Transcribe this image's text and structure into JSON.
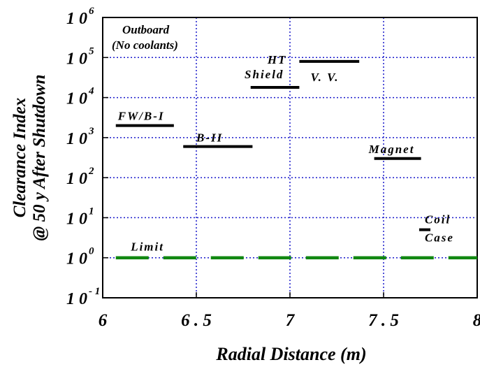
{
  "chart_data": {
    "type": "line",
    "x_scale": "linear",
    "y_scale": "log",
    "xlim": [
      6,
      8
    ],
    "ylim": [
      0.1,
      1000000
    ],
    "grid": true,
    "xlabel": "Radial Distance  (m)",
    "ylabel_lines": [
      "Clearance  Index",
      "@  50  y  After  Shutdown"
    ],
    "x_ticks": [
      {
        "value": 6,
        "label": "6"
      },
      {
        "value": 6.5,
        "label": "6 . 5"
      },
      {
        "value": 7,
        "label": "7"
      },
      {
        "value": 7.5,
        "label": "7 . 5"
      },
      {
        "value": 8,
        "label": "8"
      }
    ],
    "y_ticks": [
      {
        "value": 0.1,
        "base": "1 0",
        "exp": "- 1"
      },
      {
        "value": 1,
        "base": "1 0",
        "exp": "0"
      },
      {
        "value": 10,
        "base": "1 0",
        "exp": "1"
      },
      {
        "value": 100,
        "base": "1 0",
        "exp": "2"
      },
      {
        "value": 1000,
        "base": "1 0",
        "exp": "3"
      },
      {
        "value": 10000,
        "base": "1 0",
        "exp": "4"
      },
      {
        "value": 100000,
        "base": "1 0",
        "exp": "5"
      },
      {
        "value": 1000000,
        "base": "1 0",
        "exp": "6"
      }
    ],
    "annotation_lines": [
      "Outboard",
      "(No  coolants)"
    ],
    "segments": [
      {
        "name": "FW/B-I",
        "label_lines": [
          "FW/B-I"
        ],
        "x": [
          6.07,
          6.38
        ],
        "y": 2000
      },
      {
        "name": "B-II",
        "label_lines": [
          "B-II"
        ],
        "x": [
          6.43,
          6.8
        ],
        "y": 600
      },
      {
        "name": "HT Shield",
        "label_lines": [
          "HT",
          "Shield"
        ],
        "x": [
          6.79,
          7.05
        ],
        "y": 18000
      },
      {
        "name": "V.V.",
        "label_lines": [
          "V. V."
        ],
        "x": [
          7.05,
          7.37
        ],
        "y": 80000
      },
      {
        "name": "Magnet",
        "label_lines": [
          "Magnet"
        ],
        "x": [
          7.45,
          7.7
        ],
        "y": 300
      },
      {
        "name": "Coil Case",
        "label_lines": [
          "Coil",
          "Case"
        ],
        "x": [
          7.69,
          7.75
        ],
        "y": 5
      }
    ],
    "limit": {
      "name": "Limit",
      "label": "Limit",
      "y": 1,
      "x": [
        6.07,
        8
      ],
      "color": "#118811"
    },
    "segment_color": "#000000",
    "grid_color": "#1a1acc"
  }
}
